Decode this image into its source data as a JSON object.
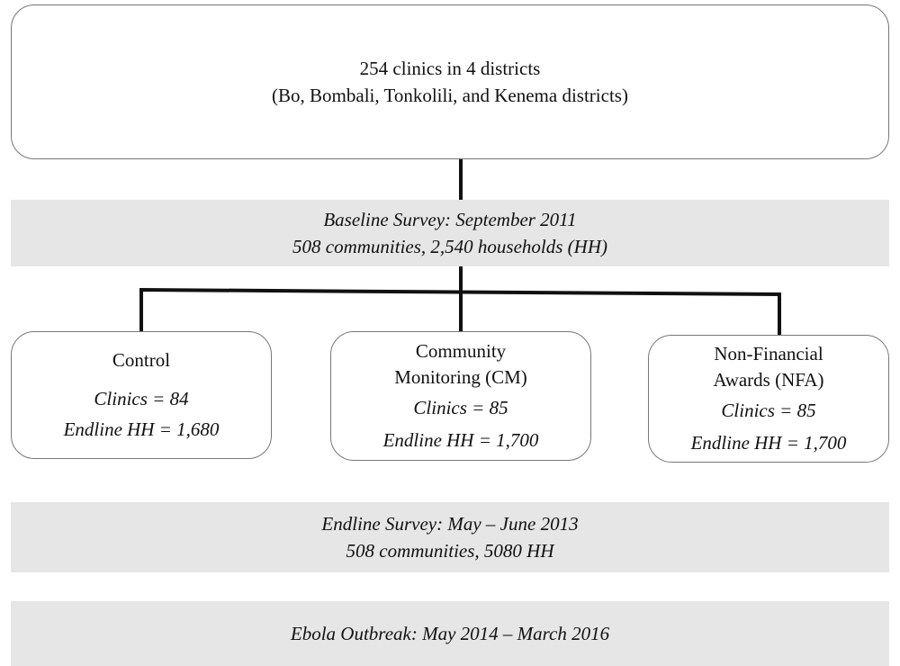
{
  "top": {
    "lines": [
      "254 clinics in 4 districts",
      "(Bo, Bombali, Tonkolili, and Kenema districts)"
    ]
  },
  "baseline": {
    "lines": [
      "Baseline Survey: September 2011",
      "508 communities, 2,540 households (HH)"
    ]
  },
  "arms": [
    {
      "title": [
        "Control"
      ],
      "clinics": "Clinics = 84",
      "endline": "Endline HH = 1,680"
    },
    {
      "title": [
        "Community",
        "Monitoring (CM)"
      ],
      "clinics": "Clinics = 85",
      "endline": "Endline HH = 1,700"
    },
    {
      "title": [
        "Non-Financial",
        "Awards (NFA)"
      ],
      "clinics": "Clinics = 85",
      "endline": "Endline HH = 1,700"
    }
  ],
  "endline": {
    "lines": [
      "Endline Survey: May – June 2013",
      "508 communities, 5080 HH"
    ]
  },
  "ebola": {
    "lines": [
      "Ebola Outbreak: May 2014 – March 2016"
    ]
  }
}
